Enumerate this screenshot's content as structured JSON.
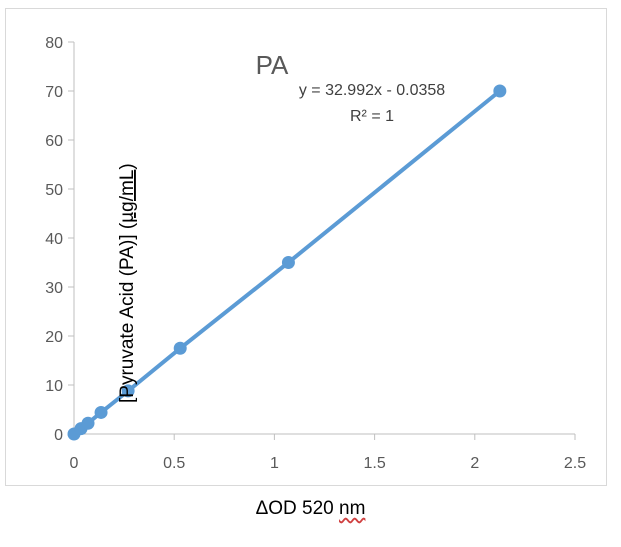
{
  "chart_data": {
    "type": "scatter",
    "title": "PA",
    "xlabel_prefix": "ΔOD 520",
    "xlabel_unit": "nm",
    "ylabel_main": "[Pyruvate Acid (PA)] (",
    "ylabel_unit": "µg/mL",
    "ylabel_end": ")",
    "xlim": [
      0,
      2.5
    ],
    "ylim": [
      0,
      80
    ],
    "xticks": [
      0,
      0.5,
      1,
      1.5,
      2,
      2.5
    ],
    "xtick_labels": [
      "0",
      "0.5",
      "1",
      "1.5",
      "2",
      "2.5"
    ],
    "yticks": [
      0,
      10,
      20,
      30,
      40,
      50,
      60,
      70,
      80
    ],
    "ytick_labels": [
      "0",
      "10",
      "20",
      "30",
      "40",
      "50",
      "60",
      "70",
      "80"
    ],
    "series": [
      {
        "name": "PA",
        "color": "#5b9bd5",
        "x": [
          0,
          0.035,
          0.07,
          0.135,
          0.27,
          0.53,
          1.07,
          2.125
        ],
        "y": [
          0,
          1.1,
          2.2,
          4.4,
          8.8,
          17.5,
          35,
          70
        ]
      }
    ],
    "trendline": {
      "equation": "y = 32.992x - 0.0358",
      "r2": "R² = 1"
    }
  }
}
